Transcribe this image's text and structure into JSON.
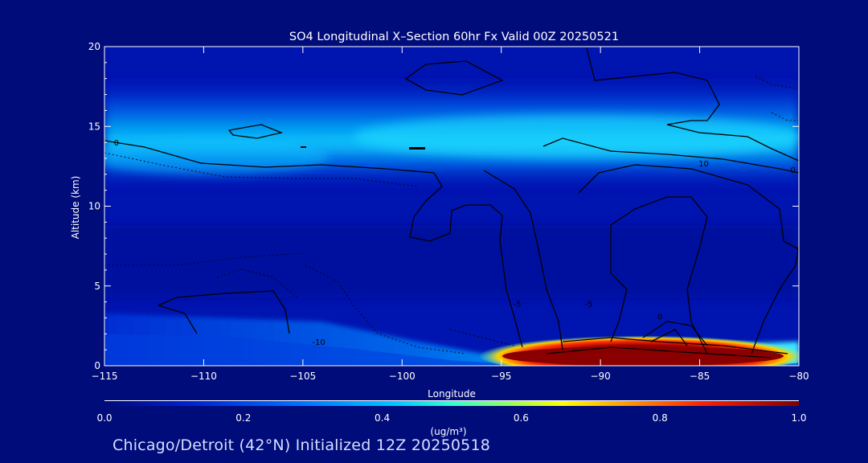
{
  "chart_data": {
    "type": "heatmap",
    "title": "SO4 Longitudinal X–Section 60hr  Fx Valid 00Z 20250521",
    "xlabel": "Longitude",
    "ylabel": "Altitude (km)",
    "xlim": [
      -115,
      -80
    ],
    "ylim": [
      0,
      20
    ],
    "x_ticks": [
      -115,
      -110,
      -105,
      -100,
      -95,
      -90,
      -85,
      -80
    ],
    "x_tick_labels": [
      "−115",
      "−110",
      "−105",
      "−100",
      "−95",
      "−90",
      "−85",
      "−80"
    ],
    "y_ticks": [
      0,
      5,
      10,
      15,
      20
    ],
    "y_tick_labels": [
      "0",
      "5",
      "10",
      "15",
      "20"
    ],
    "colorbar": {
      "label": "(ug/m³)",
      "min": 0.0,
      "max": 1.0,
      "ticks": [
        0.0,
        0.2,
        0.4,
        0.6,
        0.8,
        1.0
      ],
      "tick_labels": [
        "0.0",
        "0.2",
        "0.4",
        "0.6",
        "0.8",
        "1.0"
      ]
    },
    "contour_labels": [
      {
        "text": "0",
        "x": -114.4,
        "y": 14.0
      },
      {
        "text": "10",
        "x": -84.8,
        "y": 12.7
      },
      {
        "text": "0",
        "x": -80.3,
        "y": 12.3
      },
      {
        "text": "-10",
        "x": -104.2,
        "y": 1.5
      },
      {
        "text": "-5",
        "x": -90.6,
        "y": 3.9
      },
      {
        "text": "0",
        "x": -87.0,
        "y": 3.1
      },
      {
        "text": "-5",
        "x": -94.2,
        "y": 3.9
      }
    ],
    "features": [
      {
        "name": "upper-layer",
        "x": [
          -115,
          -80
        ],
        "y": [
          12.5,
          15.5
        ],
        "value": 0.35
      },
      {
        "name": "surface-plume",
        "x": [
          -95,
          -80
        ],
        "y": [
          0,
          1.5
        ],
        "value": 1.0
      }
    ],
    "grid": false,
    "legend": "none"
  },
  "footer": {
    "text": "Chicago/Detroit (42°N) Initialized 12Z 20250518"
  },
  "colors": {
    "background": "#000c7a",
    "field_low": "#0010a0",
    "field_mid": "#00b8f0",
    "field_high": "#8a0000",
    "contour": "#000000"
  }
}
